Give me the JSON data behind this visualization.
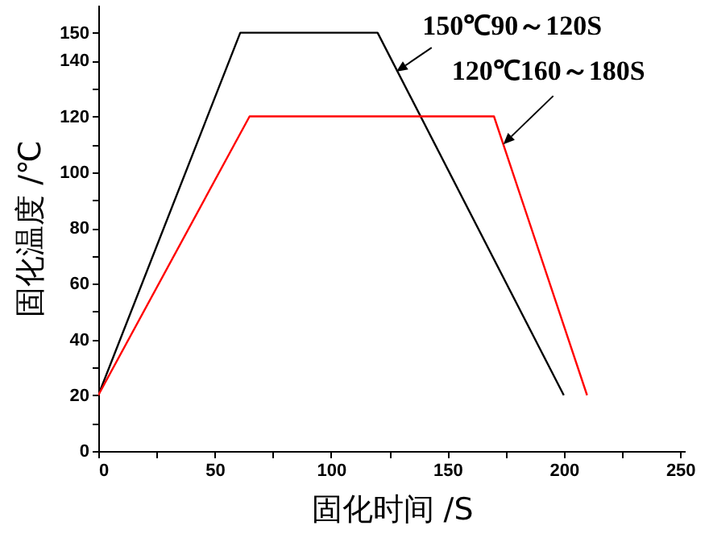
{
  "chart_data": {
    "type": "line",
    "xlabel": "固化时间 /S",
    "ylabel": "固化温度 /℃",
    "xlim": [
      0,
      252
    ],
    "ylim": [
      0,
      160
    ],
    "xticks": [
      0,
      {
        "value": 25,
        "label": null
      },
      50,
      {
        "value": 75,
        "label": null
      },
      100,
      {
        "value": 125,
        "label": null
      },
      150,
      {
        "value": 175,
        "label": null
      },
      200,
      {
        "value": 225,
        "label": null
      },
      250
    ],
    "yticks": [
      0,
      {
        "value": 10,
        "label": null
      },
      20,
      {
        "value": 30,
        "label": null
      },
      40,
      {
        "value": 50,
        "label": null
      },
      60,
      {
        "value": 70,
        "label": null
      },
      80,
      {
        "value": 90,
        "label": null
      },
      100,
      {
        "value": 110,
        "label": null
      },
      120,
      {
        "value": 130,
        "label": null
      },
      140,
      150
    ],
    "grid": false,
    "marker": "none",
    "line_style": "solid",
    "series": [
      {
        "color": "#000000",
        "x": [
          0,
          61,
          120,
          200
        ],
        "values": [
          20,
          150,
          150,
          20
        ]
      },
      {
        "color": "#ff0000",
        "x": [
          0,
          65,
          170,
          210
        ],
        "values": [
          20,
          120,
          120,
          20
        ]
      }
    ],
    "annotations": [
      {
        "text": "150℃90～120S",
        "x": 128,
        "y": 136
      },
      {
        "text": "120℃160～180S",
        "x": 174,
        "y": 110
      }
    ]
  }
}
